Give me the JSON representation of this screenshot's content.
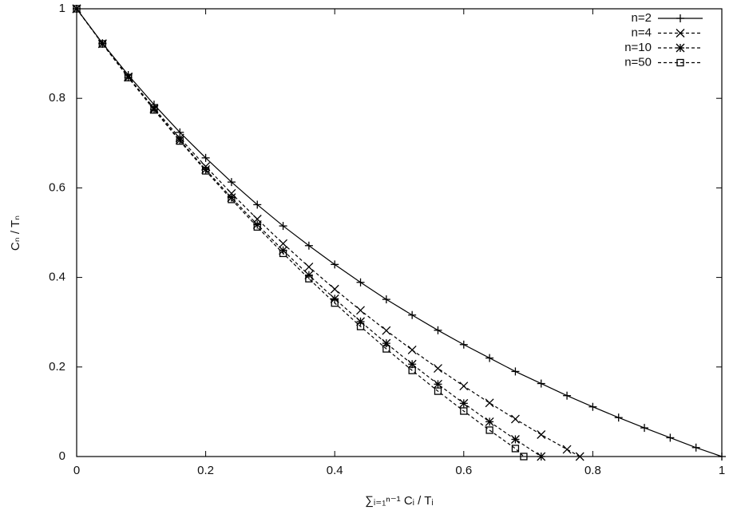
{
  "chart_data": {
    "type": "line",
    "x_label": "∑ᵢ₌₁ⁿ⁻¹ Cᵢ / Tᵢ",
    "y_label": "Cₙ / Tₙ",
    "xlim": [
      0,
      1
    ],
    "ylim": [
      0,
      1
    ],
    "xticks": [
      0,
      0.2,
      0.4,
      0.6,
      0.8,
      1
    ],
    "yticks": [
      0,
      0.2,
      0.4,
      0.6,
      0.8,
      1
    ],
    "grid": false,
    "legend": "top-right",
    "series": [
      {
        "name": "n=2",
        "color": "#000000",
        "linestyle": "solid",
        "marker": "plus",
        "x": [
          0,
          0.04,
          0.08,
          0.12,
          0.16,
          0.2,
          0.24,
          0.28,
          0.32,
          0.36,
          0.4,
          0.44,
          0.48,
          0.52,
          0.56,
          0.6,
          0.64,
          0.68,
          0.72,
          0.76,
          0.8,
          0.84,
          0.88,
          0.92,
          0.96,
          1
        ],
        "values": [
          1,
          0.923,
          0.852,
          0.786,
          0.724,
          0.667,
          0.613,
          0.5625,
          0.515,
          0.471,
          0.429,
          0.389,
          0.351,
          0.316,
          0.282,
          0.25,
          0.22,
          0.19,
          0.163,
          0.136,
          0.111,
          0.087,
          0.064,
          0.042,
          0.02,
          0
        ]
      },
      {
        "name": "n=4",
        "color": "#000000",
        "linestyle": "dashed",
        "marker": "cross",
        "x": [
          0,
          0.04,
          0.08,
          0.12,
          0.16,
          0.2,
          0.24,
          0.28,
          0.32,
          0.36,
          0.4,
          0.44,
          0.48,
          0.52,
          0.56,
          0.6,
          0.64,
          0.68,
          0.72,
          0.76,
          0.78
        ],
        "values": [
          1,
          0.9221,
          0.8482,
          0.778,
          0.7113,
          0.6479,
          0.5877,
          0.5303,
          0.4756,
          0.4235,
          0.3739,
          0.3265,
          0.2813,
          0.2381,
          0.1969,
          0.1574,
          0.1197,
          0.0836,
          0.049,
          0.016,
          0
        ]
      },
      {
        "name": "n=10",
        "color": "#000000",
        "linestyle": "dashed",
        "marker": "star",
        "x": [
          0,
          0.04,
          0.08,
          0.12,
          0.16,
          0.2,
          0.24,
          0.28,
          0.32,
          0.36,
          0.4,
          0.44,
          0.48,
          0.52,
          0.56,
          0.6,
          0.64,
          0.68,
          0.72
        ],
        "values": [
          1,
          0.9218,
          0.8469,
          0.7752,
          0.7067,
          0.641,
          0.5782,
          0.518,
          0.4604,
          0.4052,
          0.3523,
          0.3015,
          0.2529,
          0.2063,
          0.1616,
          0.1188,
          0.0777,
          0.0383,
          0
        ]
      },
      {
        "name": "n=50",
        "color": "#000000",
        "linestyle": "dashed",
        "marker": "square",
        "x": [
          0,
          0.04,
          0.08,
          0.12,
          0.16,
          0.2,
          0.24,
          0.28,
          0.32,
          0.36,
          0.4,
          0.44,
          0.48,
          0.52,
          0.56,
          0.6,
          0.64,
          0.68,
          0.693
        ],
        "values": [
          1,
          0.9216,
          0.8464,
          0.7741,
          0.7047,
          0.6381,
          0.5742,
          0.5128,
          0.4538,
          0.3972,
          0.3428,
          0.2905,
          0.2405,
          0.1923,
          0.146,
          0.1016,
          0.0589,
          0.0179,
          0
        ]
      }
    ]
  }
}
